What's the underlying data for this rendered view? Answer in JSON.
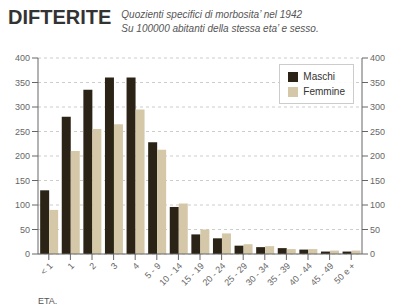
{
  "chart_data": {
    "type": "bar",
    "title": "DIFTERITE",
    "subtitle": [
      "Quozienti specifici di morbosita’ nel 1942",
      "Su 100000 abitanti della stessa eta’ e sesso."
    ],
    "x_label": "ETA.",
    "categories": [
      "< 1",
      "1",
      "2",
      "3",
      "4",
      "5 - 9",
      "10 - 14",
      "15 - 19",
      "20 - 24",
      "25 - 29",
      "30 - 34",
      "35 - 39",
      "40 - 44",
      "45 - 49",
      "50 e +"
    ],
    "series": [
      {
        "name": "Maschi",
        "color": "#2b2416",
        "values": [
          130,
          280,
          335,
          360,
          360,
          228,
          96,
          40,
          32,
          17,
          14,
          12,
          9,
          5,
          5
        ]
      },
      {
        "name": "Femmine",
        "color": "#d4c8a8",
        "values": [
          90,
          210,
          255,
          265,
          295,
          213,
          103,
          50,
          42,
          20,
          16,
          10,
          10,
          7,
          7
        ]
      }
    ],
    "ylim": [
      0,
      400
    ],
    "yticks": [
      0,
      50,
      100,
      150,
      200,
      250,
      300,
      350,
      400
    ],
    "y2lim": [
      0,
      400
    ],
    "y2ticks": [
      0,
      50,
      100,
      150,
      200,
      250,
      300,
      350,
      400
    ],
    "grid": true,
    "legend": "upper right"
  }
}
